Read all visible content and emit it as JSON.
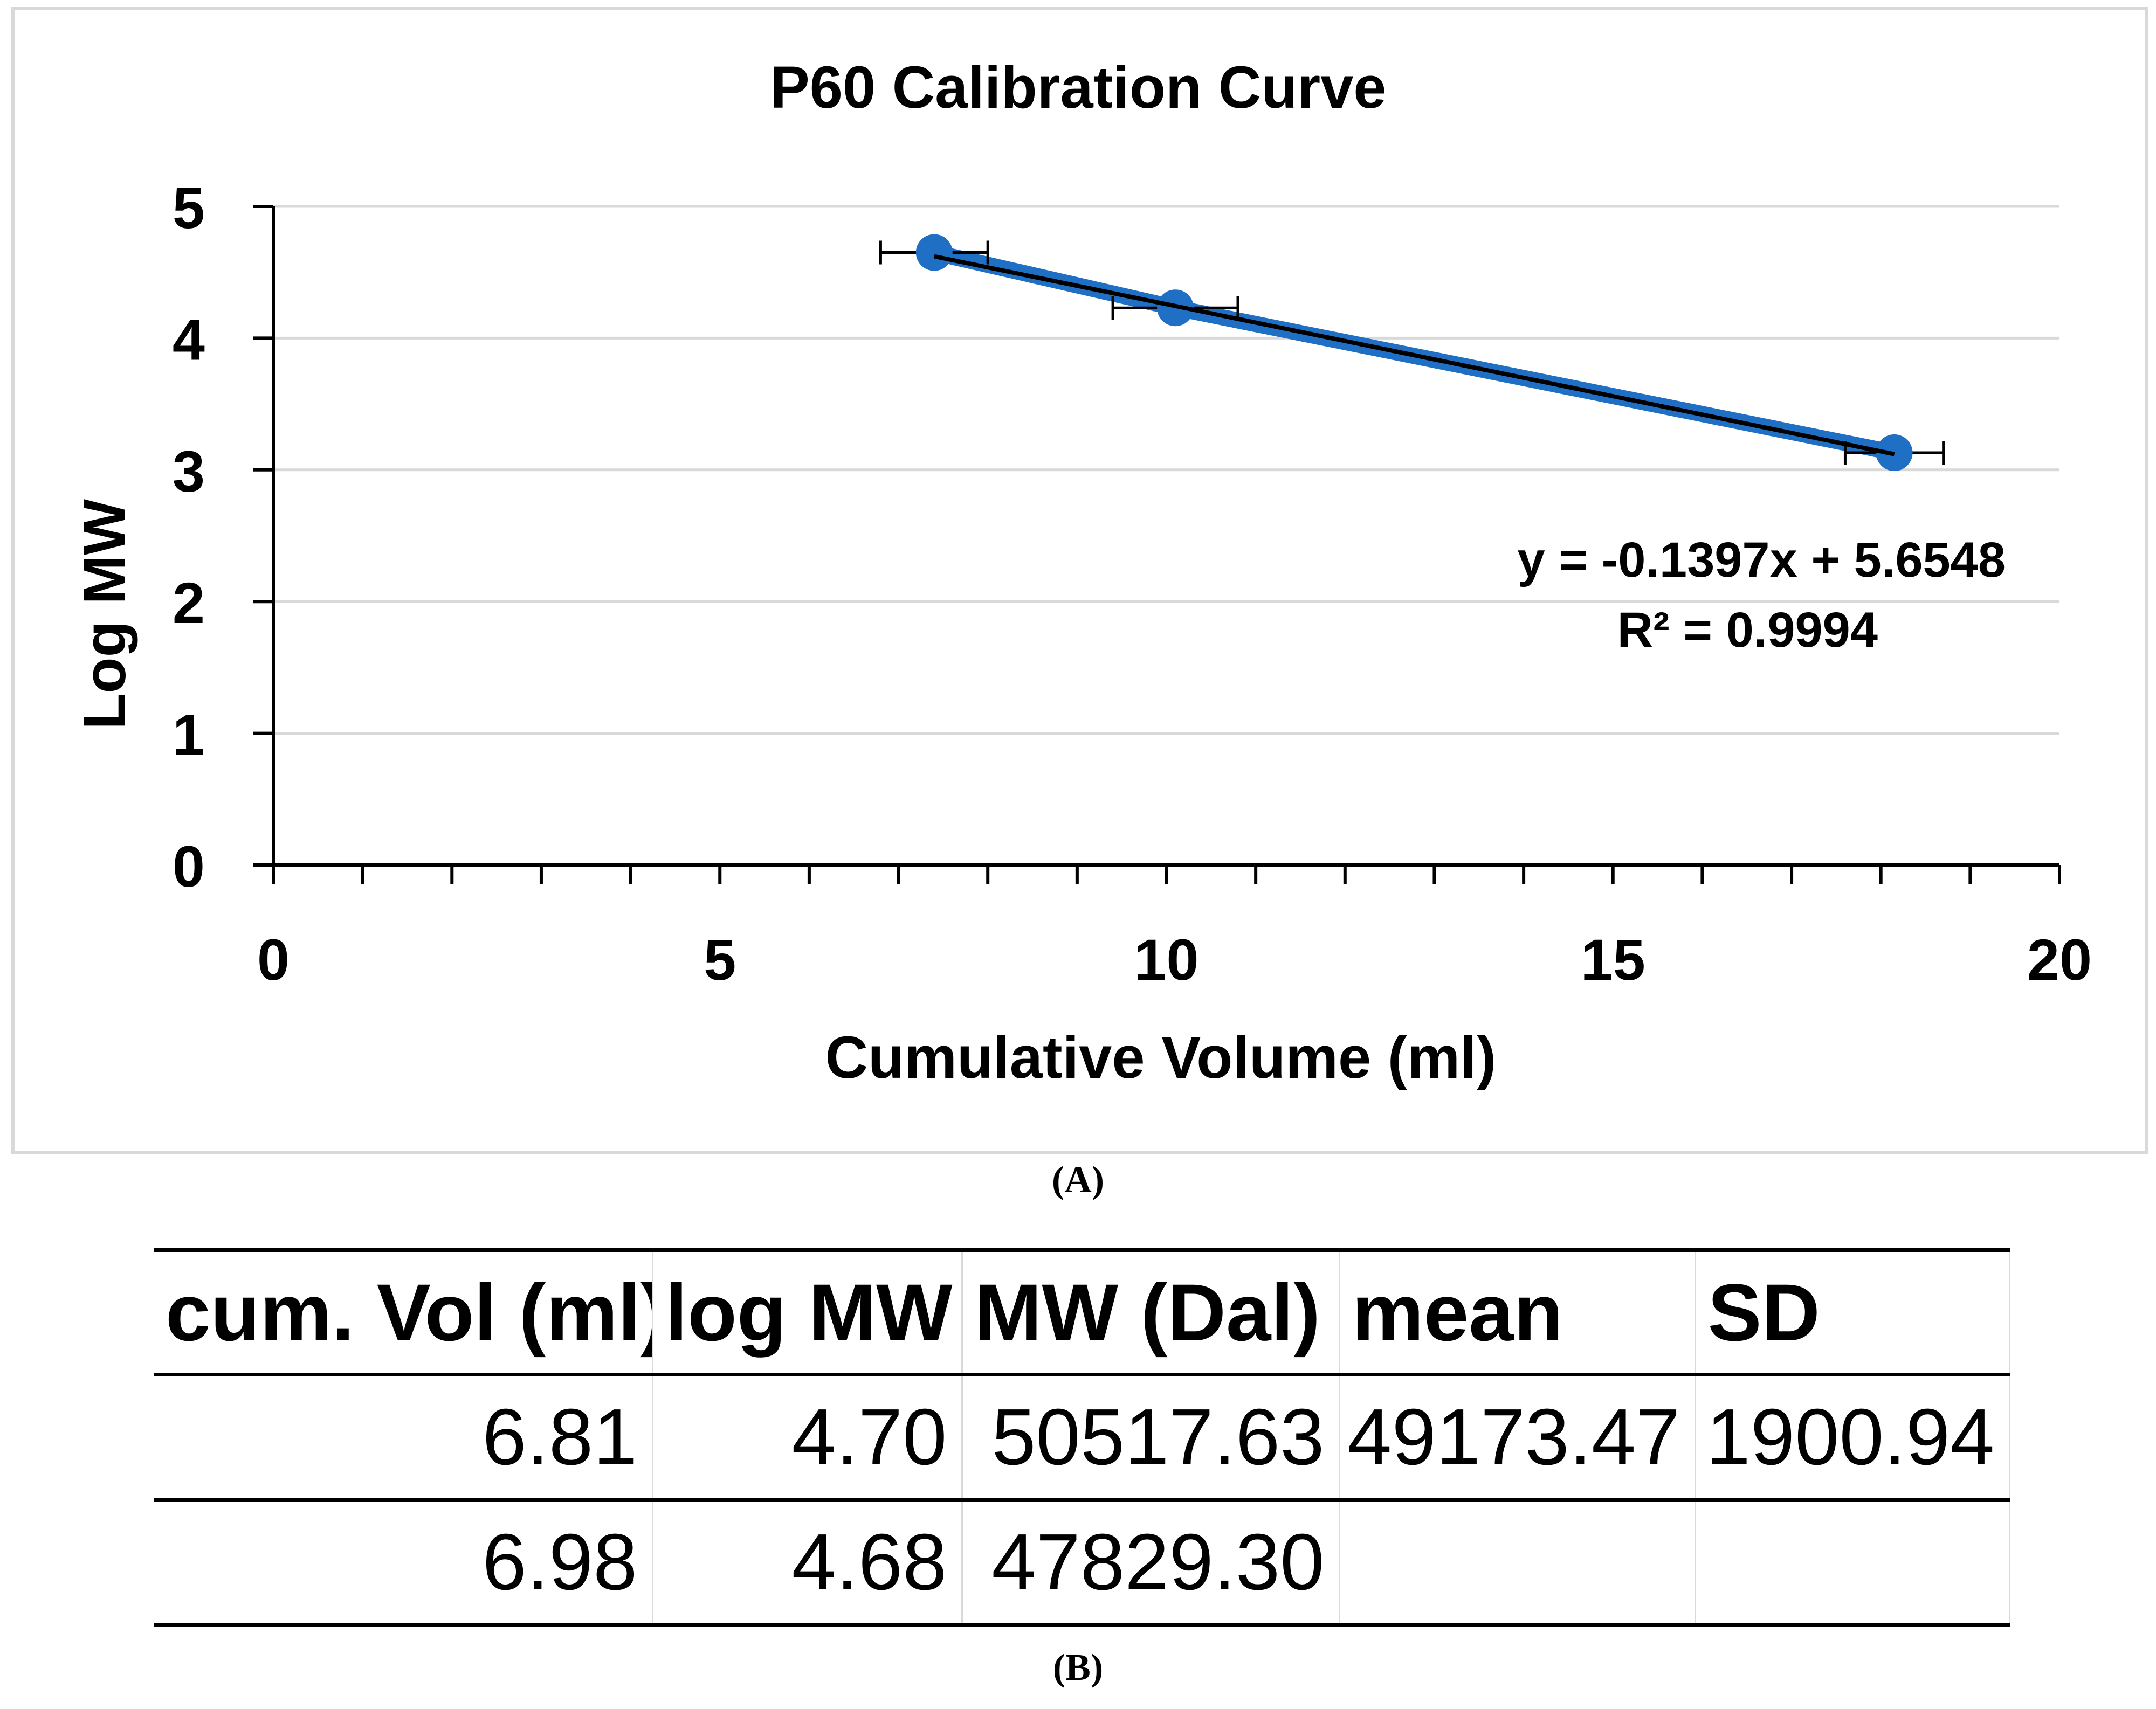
{
  "figure": {
    "caption_a": "(A)",
    "caption_b": "(B)"
  },
  "chart_data": {
    "type": "scatter",
    "title": "P60 Calibration Curve",
    "xlabel": "Cumulative Volume (ml)",
    "ylabel": "Log MW",
    "xlim": [
      0,
      20
    ],
    "ylim": [
      0,
      5
    ],
    "x_ticks": [
      "0",
      "5",
      "10",
      "15",
      "20"
    ],
    "y_ticks": [
      "0",
      "1",
      "2",
      "3",
      "4",
      "5"
    ],
    "grid": "horizontal",
    "series": [
      {
        "x": [
          7.4,
          10.1,
          18.15
        ],
        "y": [
          4.65,
          4.23,
          3.13
        ],
        "x_error": [
          0.6,
          0.7,
          0.55
        ],
        "color": "#1f6fc5"
      }
    ],
    "trendline": {
      "slope": -0.1397,
      "intercept": 5.6548,
      "x_range": [
        7.4,
        18.15
      ],
      "equation": "y = -0.1397x + 5.6548",
      "r2": "R² = 0.9994",
      "color": "#000000"
    }
  },
  "table": {
    "headers": [
      "cum. Vol (ml)",
      "log MW",
      "MW (Dal)",
      "mean",
      "SD"
    ],
    "rows": [
      [
        "6.81",
        "4.70",
        "50517.63",
        "49173.47",
        "1900.94"
      ],
      [
        "6.98",
        "4.68",
        "47829.30",
        "",
        ""
      ]
    ]
  }
}
